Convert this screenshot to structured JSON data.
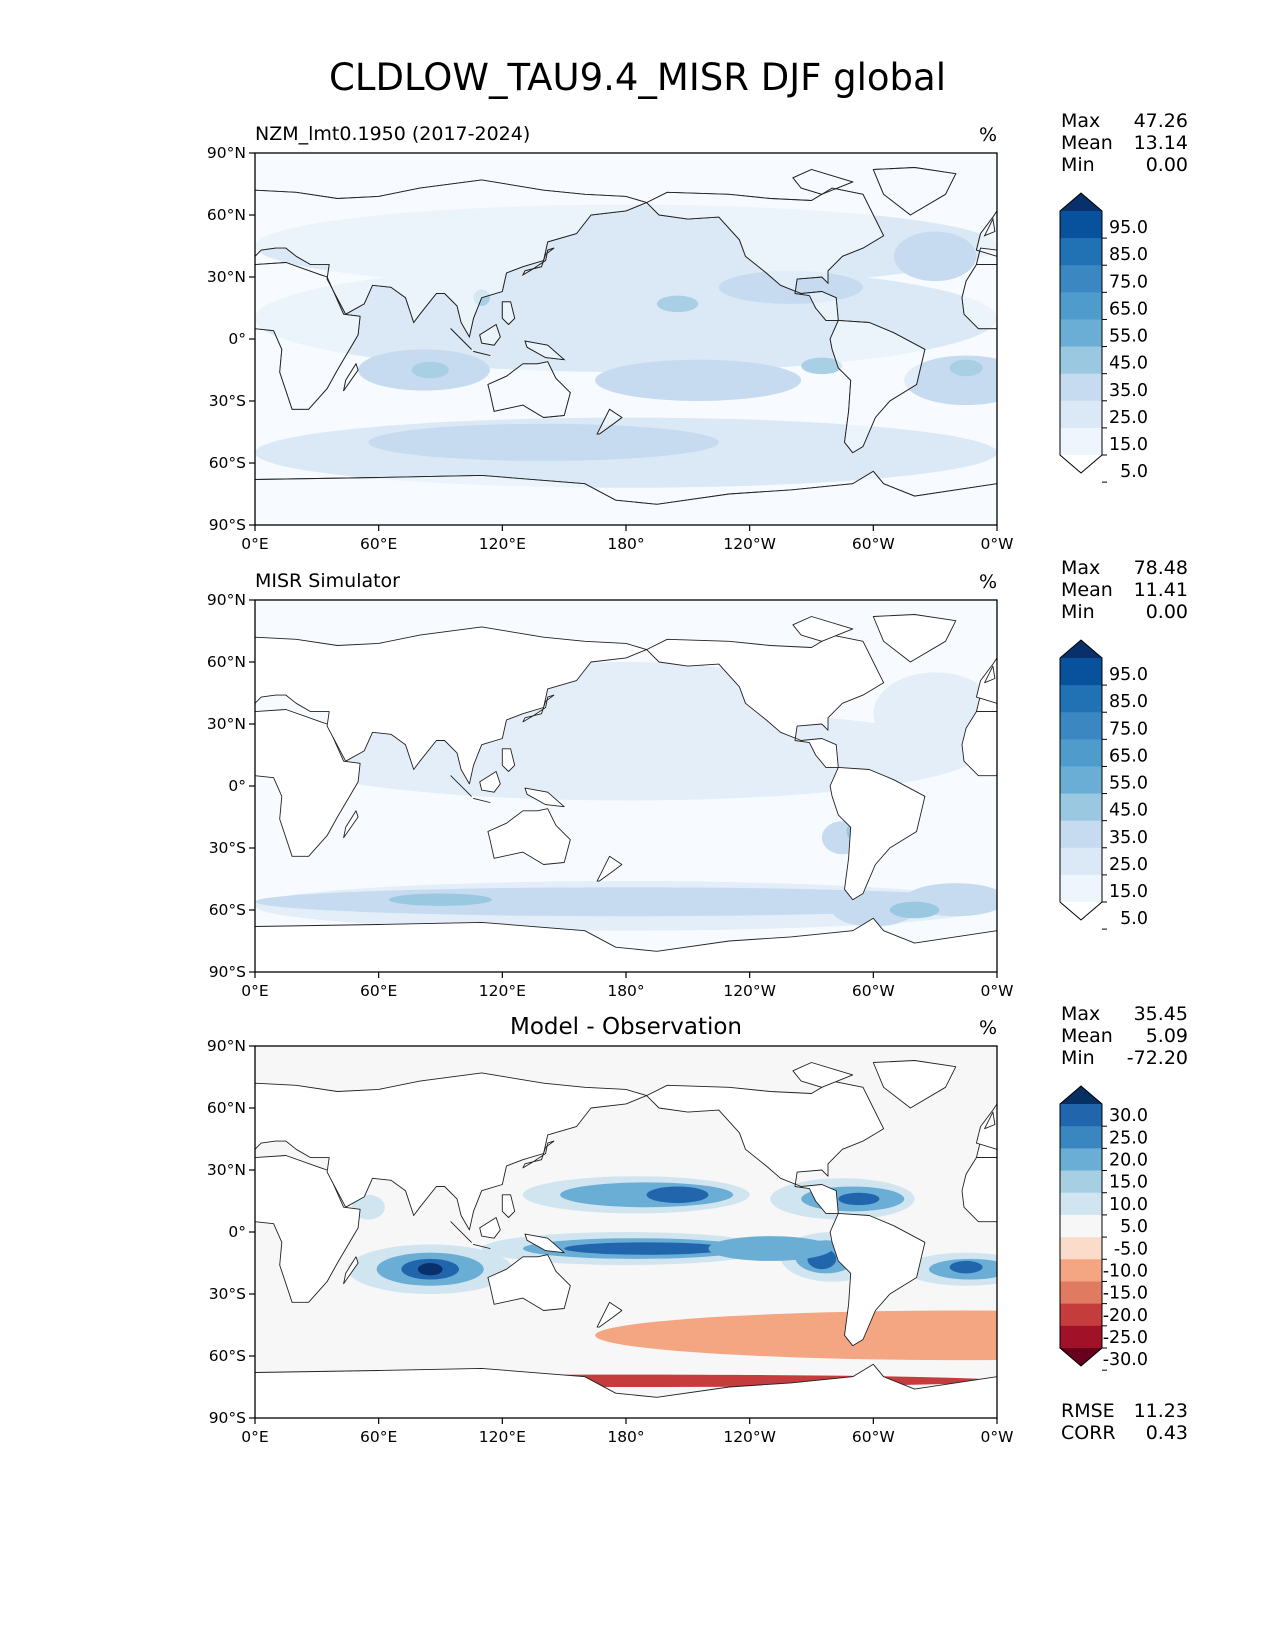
{
  "figure": {
    "title": "CLDLOW_TAU9.4_MISR DJF global"
  },
  "axes": {
    "lat_labels": [
      "90°N",
      "60°N",
      "30°N",
      "0°",
      "30°S",
      "60°S",
      "90°S"
    ],
    "lon_labels": [
      "0°E",
      "60°E",
      "120°E",
      "180°",
      "120°W",
      "60°W",
      "0°W"
    ]
  },
  "panels": [
    {
      "left_title": "NZM_lmt0.1950 (2017-2024)",
      "center_title": "",
      "units": "%",
      "stats": [
        {
          "label": "Max",
          "value": "47.26"
        },
        {
          "label": "Mean",
          "value": "13.14"
        },
        {
          "label": "Min",
          "value": "0.00"
        }
      ],
      "extra_stats": [],
      "colorbar": {
        "labels": [
          "95.0",
          "85.0",
          "75.0",
          "65.0",
          "55.0",
          "45.0",
          "35.0",
          "25.0",
          "15.0",
          "5.0"
        ],
        "colors": [
          "#08306b",
          "#08519c",
          "#2171b5",
          "#3b87c2",
          "#4f9bcb",
          "#6aaed6",
          "#9ac8e0",
          "#c6dbef",
          "#dbe9f6",
          "#eff5fc",
          "#ffffff"
        ],
        "map_fills": [
          "#f7fbff",
          "#dbe9f6",
          "#c6dbef",
          "#a9cfe5"
        ]
      }
    },
    {
      "left_title": "MISR Simulator",
      "center_title": "",
      "units": "%",
      "stats": [
        {
          "label": "Max",
          "value": "78.48"
        },
        {
          "label": "Mean",
          "value": "11.41"
        },
        {
          "label": "Min",
          "value": "0.00"
        }
      ],
      "extra_stats": [],
      "colorbar": {
        "labels": [
          "95.0",
          "85.0",
          "75.0",
          "65.0",
          "55.0",
          "45.0",
          "35.0",
          "25.0",
          "15.0",
          "5.0"
        ],
        "colors": [
          "#08306b",
          "#08519c",
          "#2171b5",
          "#3b87c2",
          "#4f9bcb",
          "#6aaed6",
          "#9ac8e0",
          "#c6dbef",
          "#dbe9f6",
          "#eff5fc",
          "#ffffff"
        ],
        "map_fills": [
          "#f7fbff",
          "#e3eef9",
          "#c6dbef",
          "#9ac8e0"
        ]
      }
    },
    {
      "left_title": "",
      "center_title": "Model - Observation",
      "units": "%",
      "stats": [
        {
          "label": "Max",
          "value": "35.45"
        },
        {
          "label": "Mean",
          "value": "5.09"
        },
        {
          "label": "Min",
          "value": "-72.20"
        }
      ],
      "extra_stats": [
        {
          "label": "RMSE",
          "value": "11.23"
        },
        {
          "label": "CORR",
          "value": "0.43"
        }
      ],
      "colorbar": {
        "labels": [
          "30.0",
          "25.0",
          "20.0",
          "15.0",
          "10.0",
          "5.0",
          "-5.0",
          "-10.0",
          "-15.0",
          "-20.0",
          "-25.0",
          "-30.0"
        ],
        "colors": [
          "#053061",
          "#2166ac",
          "#3a87c0",
          "#6aaed6",
          "#a7cfe4",
          "#d1e5f0",
          "#f7f7f7",
          "#fbdccb",
          "#f4a582",
          "#e07b62",
          "#c43c3c",
          "#a11228",
          "#67001f"
        ],
        "map_fills": [
          "#f7f7f7",
          "#d1e5f0",
          "#6aaed6",
          "#2166ac",
          "#08306b",
          "#f4a582",
          "#c43c3c"
        ]
      }
    }
  ]
}
